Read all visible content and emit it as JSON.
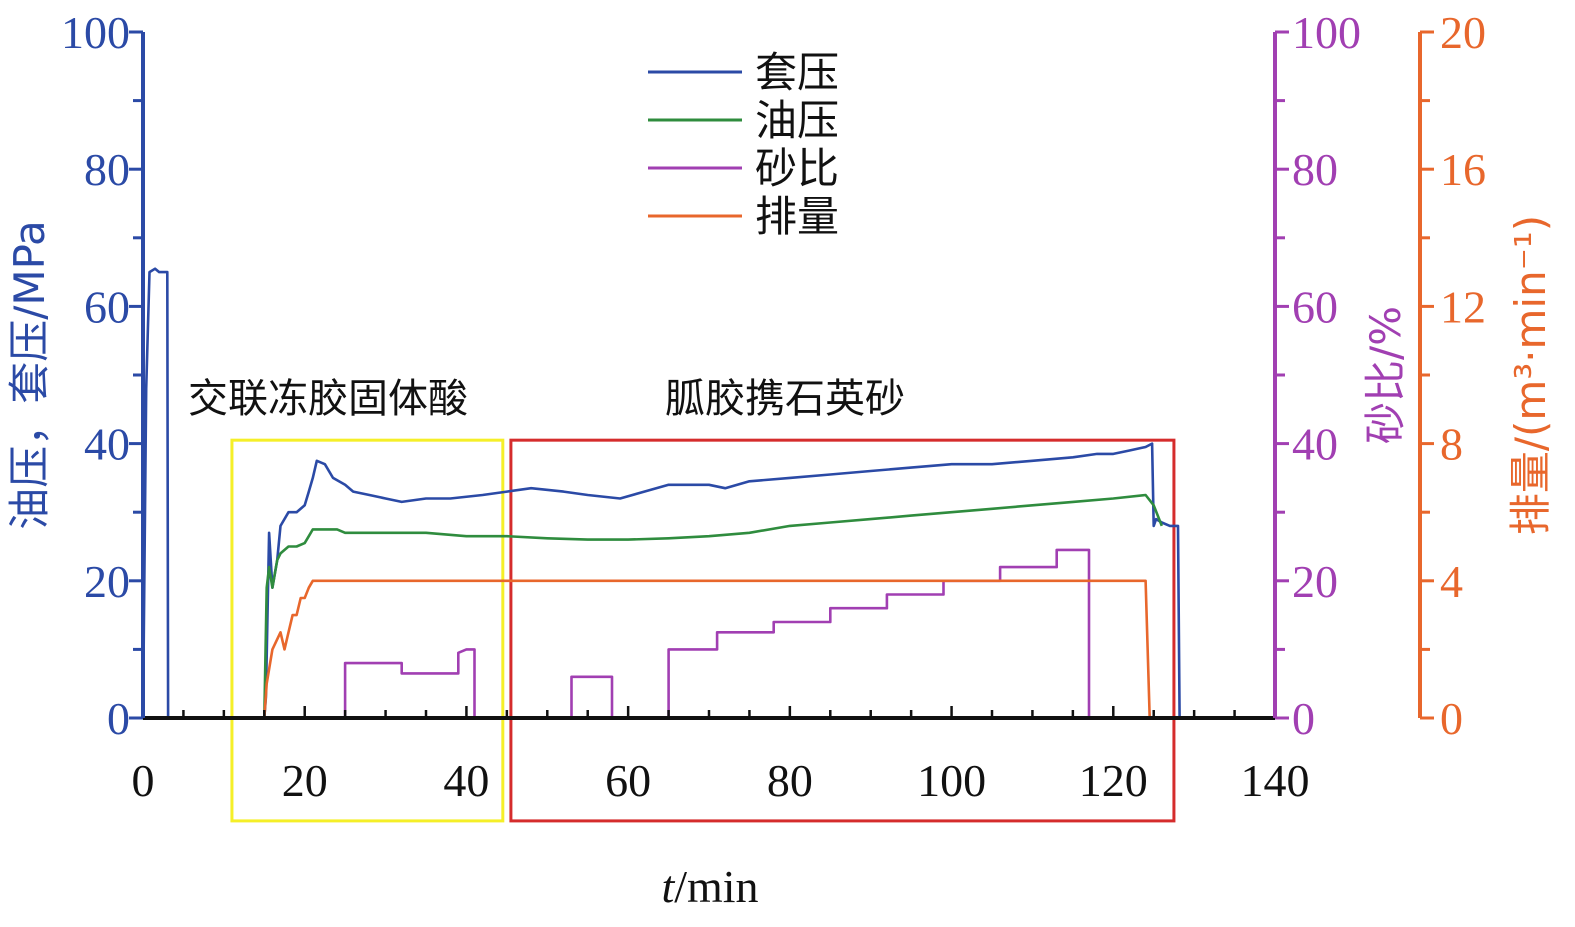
{
  "chart_data": {
    "type": "line",
    "xlabel": "t/min",
    "xlim": [
      0,
      140
    ],
    "xticks": [
      0,
      20,
      40,
      60,
      80,
      100,
      120,
      140
    ],
    "axes": {
      "left": {
        "label": "油压，套压/MPa",
        "range": [
          0,
          100
        ],
        "ticks": [
          0,
          20,
          40,
          60,
          80,
          100
        ],
        "color": "#2b4aa6"
      },
      "right1": {
        "label": "砂比/%",
        "range": [
          0,
          100
        ],
        "ticks": [
          0,
          20,
          40,
          60,
          80,
          100
        ],
        "color": "#a13fb2"
      },
      "right2": {
        "label": "排量/(m³·min⁻¹)",
        "range": [
          0,
          20
        ],
        "ticks": [
          0,
          4,
          8,
          12,
          16,
          20
        ],
        "color": "#e8672c"
      }
    },
    "series": [
      {
        "name": "套压",
        "axis": "left",
        "color": "#2b4aa6",
        "points": [
          [
            0,
            0
          ],
          [
            0.4,
            48
          ],
          [
            0.8,
            65
          ],
          [
            1.5,
            65.5
          ],
          [
            2,
            65
          ],
          [
            3,
            65
          ],
          [
            3.1,
            0
          ],
          [
            15,
            0
          ],
          [
            15.2,
            3
          ],
          [
            15.6,
            27
          ],
          [
            16,
            19
          ],
          [
            16.6,
            23
          ],
          [
            17,
            28
          ],
          [
            18,
            30
          ],
          [
            19,
            30
          ],
          [
            20,
            31
          ],
          [
            20.5,
            33
          ],
          [
            21,
            35
          ],
          [
            21.5,
            37.5
          ],
          [
            22.5,
            37
          ],
          [
            23.5,
            35
          ],
          [
            25,
            34
          ],
          [
            26,
            33
          ],
          [
            28,
            32.5
          ],
          [
            30,
            32
          ],
          [
            32,
            31.5
          ],
          [
            35,
            32
          ],
          [
            38,
            32
          ],
          [
            42,
            32.5
          ],
          [
            45,
            33
          ],
          [
            48,
            33.5
          ],
          [
            52,
            33
          ],
          [
            55,
            32.5
          ],
          [
            59,
            32
          ],
          [
            62,
            33
          ],
          [
            65,
            34
          ],
          [
            70,
            34
          ],
          [
            72,
            33.5
          ],
          [
            75,
            34.5
          ],
          [
            80,
            35
          ],
          [
            85,
            35.5
          ],
          [
            90,
            36
          ],
          [
            95,
            36.5
          ],
          [
            100,
            37
          ],
          [
            105,
            37
          ],
          [
            110,
            37.5
          ],
          [
            115,
            38
          ],
          [
            118,
            38.5
          ],
          [
            120,
            38.5
          ],
          [
            122,
            39
          ],
          [
            124,
            39.5
          ],
          [
            124.8,
            40
          ],
          [
            125,
            28
          ],
          [
            125.3,
            29
          ],
          [
            126,
            28.5
          ],
          [
            127,
            28
          ],
          [
            128,
            28
          ],
          [
            128.2,
            0
          ]
        ]
      },
      {
        "name": "油压",
        "axis": "left",
        "color": "#2f8c3e",
        "points": [
          [
            15,
            0
          ],
          [
            15.3,
            19
          ],
          [
            15.6,
            22
          ],
          [
            16,
            19
          ],
          [
            16.6,
            23
          ],
          [
            17,
            24
          ],
          [
            18,
            25
          ],
          [
            19,
            25
          ],
          [
            20,
            25.5
          ],
          [
            20.5,
            26.5
          ],
          [
            21,
            27.5
          ],
          [
            22,
            27.5
          ],
          [
            24,
            27.5
          ],
          [
            25,
            27
          ],
          [
            30,
            27
          ],
          [
            35,
            27
          ],
          [
            40,
            26.5
          ],
          [
            45,
            26.5
          ],
          [
            50,
            26.2
          ],
          [
            55,
            26
          ],
          [
            60,
            26
          ],
          [
            65,
            26.2
          ],
          [
            70,
            26.5
          ],
          [
            75,
            27
          ],
          [
            80,
            28
          ],
          [
            85,
            28.5
          ],
          [
            90,
            29
          ],
          [
            95,
            29.5
          ],
          [
            100,
            30
          ],
          [
            105,
            30.5
          ],
          [
            110,
            31
          ],
          [
            115,
            31.5
          ],
          [
            120,
            32
          ],
          [
            124,
            32.5
          ],
          [
            125,
            31
          ],
          [
            126,
            28
          ]
        ]
      },
      {
        "name": "砂比",
        "axis": "right1",
        "color": "#a13fb2",
        "points": [
          [
            25,
            0
          ],
          [
            25,
            8
          ],
          [
            32,
            8
          ],
          [
            32,
            6.5
          ],
          [
            39,
            6.5
          ],
          [
            39,
            9.5
          ],
          [
            40,
            10
          ],
          [
            41,
            10
          ],
          [
            41,
            0
          ],
          [
            53,
            0
          ],
          [
            53,
            6
          ],
          [
            58,
            6
          ],
          [
            58,
            0
          ],
          [
            65,
            0
          ],
          [
            65,
            10
          ],
          [
            71,
            10
          ],
          [
            71,
            12.5
          ],
          [
            78,
            12.5
          ],
          [
            78,
            14
          ],
          [
            85,
            14
          ],
          [
            85,
            16
          ],
          [
            92,
            16
          ],
          [
            92,
            18
          ],
          [
            99,
            18
          ],
          [
            99,
            20
          ],
          [
            106,
            20
          ],
          [
            106,
            22
          ],
          [
            113,
            22
          ],
          [
            113,
            24.5
          ],
          [
            117,
            24.5
          ],
          [
            117,
            0
          ]
        ]
      },
      {
        "name": "排量",
        "axis": "right2",
        "color": "#e8672c",
        "points": [
          [
            15,
            0
          ],
          [
            15.3,
            1
          ],
          [
            16,
            2
          ],
          [
            17,
            2.5
          ],
          [
            17.5,
            2
          ],
          [
            18,
            2.5
          ],
          [
            18.5,
            3
          ],
          [
            19,
            3
          ],
          [
            19.5,
            3.5
          ],
          [
            20,
            3.5
          ],
          [
            20.5,
            3.8
          ],
          [
            21,
            4
          ],
          [
            22,
            4
          ],
          [
            30,
            4
          ],
          [
            40,
            4
          ],
          [
            50,
            4
          ],
          [
            60,
            4
          ],
          [
            70,
            4
          ],
          [
            80,
            4
          ],
          [
            90,
            4
          ],
          [
            100,
            4
          ],
          [
            110,
            4
          ],
          [
            120,
            4
          ],
          [
            124,
            4
          ],
          [
            124.5,
            0
          ]
        ]
      }
    ],
    "annotations": [
      {
        "text": "交联冻胶固体酸",
        "color": "#f5ef28",
        "x_range": [
          11,
          44.5
        ],
        "y_range": [
          -15,
          40.5
        ]
      },
      {
        "text": "胍胶携石英砂",
        "color": "#d52c2c",
        "x_range": [
          45.5,
          127.5
        ],
        "y_range": [
          -15,
          40.5
        ]
      }
    ],
    "legend": {
      "position": "top-center",
      "entries": [
        "套压",
        "油压",
        "砂比",
        "排量"
      ]
    }
  }
}
